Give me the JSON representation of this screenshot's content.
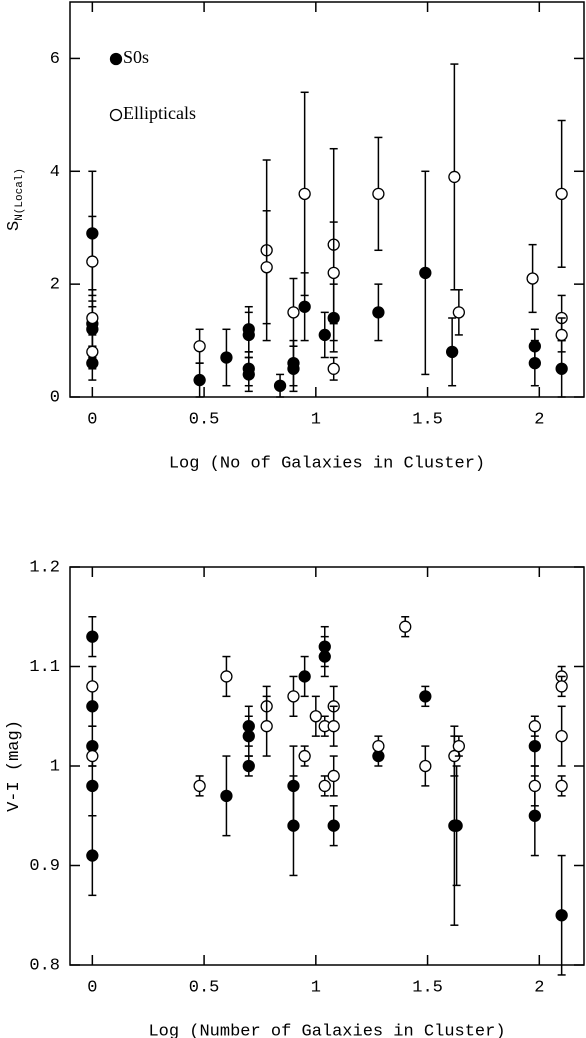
{
  "chart_data": [
    {
      "type": "scatter",
      "x_label": "Log (No of Galaxies in Cluster)",
      "y_label": "S",
      "y_label_sub": "N(Local)",
      "xlim": [
        -0.1,
        2.2
      ],
      "xticks": [
        0,
        0.5,
        1,
        1.5,
        2
      ],
      "ylim": [
        0,
        7
      ],
      "yticks": [
        0,
        2,
        4,
        6
      ],
      "legend": "upper left",
      "series": [
        {
          "name": "S0s",
          "color": "#000000",
          "marker": "filled",
          "x": [
            0,
            0,
            0,
            0,
            0.48,
            0.6,
            0.7,
            0.7,
            0.7,
            0.7,
            0.84,
            0.9,
            0.9,
            0.95,
            1.04,
            1.08,
            1.28,
            1.49,
            1.61,
            1.98,
            1.98,
            2.1
          ],
          "values": [
            2.9,
            1.3,
            1.2,
            0.6,
            0.3,
            0.7,
            1.2,
            1.1,
            0.5,
            0.4,
            0.2,
            0.6,
            0.5,
            1.6,
            1.1,
            1.4,
            1.5,
            2.2,
            0.8,
            0.9,
            0.6,
            0.5
          ],
          "errors": [
            1.1,
            0.6,
            0.5,
            0.3,
            0.3,
            0.5,
            0.4,
            0.4,
            0.3,
            0.3,
            0.2,
            0.4,
            0.4,
            0.6,
            0.4,
            0.6,
            0.5,
            1.8,
            0.6,
            0.3,
            0.4,
            0.5
          ]
        },
        {
          "name": "Ellipticals",
          "color": "#000000",
          "marker": "open",
          "x": [
            0,
            0,
            0,
            0.48,
            0.78,
            0.78,
            0.9,
            0.95,
            1.08,
            1.08,
            1.08,
            1.28,
            1.62,
            1.64,
            1.97,
            2.1,
            2.1,
            2.1
          ],
          "values": [
            2.4,
            1.4,
            0.8,
            0.9,
            2.6,
            2.3,
            1.5,
            3.6,
            2.7,
            2.2,
            0.5,
            3.6,
            3.9,
            1.5,
            2.1,
            3.6,
            1.4,
            1.1
          ],
          "errors": [
            0.8,
            0.5,
            0.3,
            0.3,
            1.6,
            1.0,
            0.6,
            1.8,
            1.7,
            0.9,
            0.2,
            1.0,
            2.0,
            0.4,
            0.6,
            1.3,
            0.4,
            0.3
          ]
        }
      ]
    },
    {
      "type": "scatter",
      "x_label": "Log (Number of Galaxies in Cluster)",
      "y_label": "V-I (mag)",
      "xlim": [
        -0.1,
        2.2
      ],
      "xticks": [
        0,
        0.5,
        1,
        1.5,
        2
      ],
      "ylim": [
        0.8,
        1.2
      ],
      "yticks": [
        0.8,
        0.9,
        1,
        1.1,
        1.2
      ],
      "series": [
        {
          "name": "S0s",
          "color": "#000000",
          "marker": "filled",
          "x": [
            0,
            0,
            0,
            0,
            0,
            0.6,
            0.7,
            0.7,
            0.7,
            0.9,
            0.9,
            0.95,
            1.04,
            1.04,
            1.08,
            1.28,
            1.49,
            1.62,
            1.63,
            1.98,
            1.98,
            2.1
          ],
          "values": [
            1.13,
            1.06,
            1.02,
            0.98,
            0.91,
            0.97,
            1.04,
            1.03,
            1.0,
            0.98,
            0.94,
            1.09,
            1.12,
            1.11,
            0.94,
            1.01,
            1.07,
            0.94,
            0.94,
            1.02,
            0.95,
            0.85
          ],
          "errors": [
            0.02,
            0.02,
            0.02,
            0.03,
            0.04,
            0.04,
            0.02,
            0.02,
            0.01,
            0.04,
            0.05,
            0.02,
            0.02,
            0.02,
            0.02,
            0.01,
            0.01,
            0.1,
            0.06,
            0.02,
            0.04,
            0.06
          ]
        },
        {
          "name": "Ellipticals",
          "color": "#000000",
          "marker": "open",
          "x": [
            0,
            0,
            0.48,
            0.6,
            0.78,
            0.78,
            0.9,
            0.95,
            1.0,
            1.04,
            1.04,
            1.08,
            1.08,
            1.08,
            1.28,
            1.4,
            1.49,
            1.62,
            1.64,
            1.98,
            1.98,
            2.1,
            2.1,
            2.1,
            2.1
          ],
          "values": [
            1.08,
            1.01,
            0.98,
            1.09,
            1.06,
            1.04,
            1.07,
            1.01,
            1.05,
            1.04,
            0.98,
            1.06,
            1.04,
            0.99,
            1.02,
            1.14,
            1.0,
            1.01,
            1.02,
            1.04,
            0.98,
            1.09,
            1.08,
            1.03,
            0.98
          ],
          "errors": [
            0.02,
            0.01,
            0.01,
            0.02,
            0.02,
            0.03,
            0.02,
            0.01,
            0.02,
            0.01,
            0.01,
            0.02,
            0.02,
            0.02,
            0.01,
            0.01,
            0.02,
            0.02,
            0.01,
            0.01,
            0.02,
            0.01,
            0.01,
            0.03,
            0.01
          ]
        }
      ]
    }
  ]
}
